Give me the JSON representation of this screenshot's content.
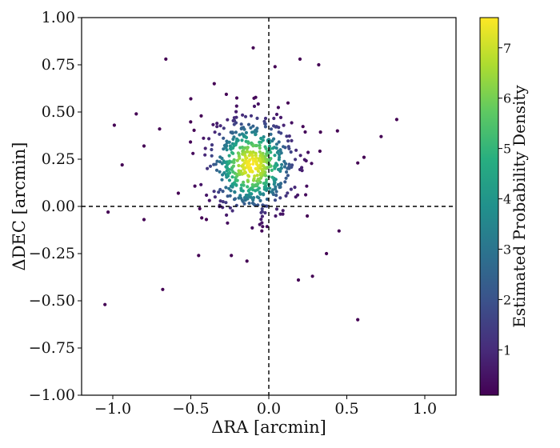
{
  "chart_data": {
    "type": "scatter",
    "xlabel": "ΔRA [arcmin]",
    "ylabel": "ΔDEC [arcmin]",
    "xlim": [
      -1.2,
      1.2
    ],
    "ylim": [
      -1.0,
      1.0
    ],
    "xticks": [
      -1.0,
      -0.5,
      0.0,
      0.5,
      1.0
    ],
    "xtick_labels": [
      "−1.0",
      "−0.5",
      "0.0",
      "0.5",
      "1.0"
    ],
    "yticks": [
      1.0,
      0.75,
      0.5,
      0.25,
      0.0,
      -0.25,
      -0.5,
      -0.75,
      -1.0
    ],
    "ytick_labels": [
      "1.00",
      "0.75",
      "0.50",
      "0.25",
      "0.00",
      "−0.25",
      "−0.50",
      "−0.75",
      "−1.00"
    ],
    "reference_lines": {
      "x": 0.0,
      "y": 0.0,
      "style": "dashed"
    },
    "grid": false,
    "colormap": "viridis",
    "colorbar": {
      "label": "Estimated Probability Density",
      "range": [
        0.1,
        7.6
      ],
      "ticks": [
        1,
        2,
        3,
        4,
        5,
        6,
        7
      ],
      "tick_labels": [
        "1",
        "2",
        "3",
        "4",
        "5",
        "6",
        "7"
      ]
    },
    "outliers": [
      {
        "x": -1.05,
        "y": -0.52
      },
      {
        "x": -0.68,
        "y": -0.44
      },
      {
        "x": -0.66,
        "y": 0.78
      },
      {
        "x": -0.1,
        "y": 0.84
      },
      {
        "x": 0.04,
        "y": 0.74
      },
      {
        "x": 0.2,
        "y": 0.78
      },
      {
        "x": 0.32,
        "y": 0.75
      },
      {
        "x": 0.82,
        "y": 0.46
      },
      {
        "x": 0.72,
        "y": 0.37
      },
      {
        "x": -0.99,
        "y": 0.43
      },
      {
        "x": -0.94,
        "y": 0.22
      },
      {
        "x": -1.03,
        "y": -0.03
      },
      {
        "x": 0.57,
        "y": -0.6
      },
      {
        "x": 0.19,
        "y": -0.39
      },
      {
        "x": 0.28,
        "y": -0.37
      },
      {
        "x": 0.37,
        "y": -0.25
      },
      {
        "x": 0.45,
        "y": -0.13
      },
      {
        "x": -0.45,
        "y": -0.26
      },
      {
        "x": -0.24,
        "y": -0.26
      },
      {
        "x": -0.14,
        "y": -0.29
      },
      {
        "x": -0.85,
        "y": 0.49
      },
      {
        "x": -0.8,
        "y": 0.32
      },
      {
        "x": -0.8,
        "y": -0.07
      },
      {
        "x": -0.58,
        "y": 0.07
      },
      {
        "x": 0.57,
        "y": 0.23
      },
      {
        "x": 0.61,
        "y": 0.26
      },
      {
        "x": 0.44,
        "y": 0.4
      },
      {
        "x": -0.35,
        "y": 0.65
      },
      {
        "x": -0.5,
        "y": 0.57
      },
      {
        "x": -0.7,
        "y": 0.41
      }
    ],
    "cluster": {
      "center": [
        -0.11,
        0.22
      ],
      "spread": [
        0.15,
        0.135
      ],
      "point_count": 560,
      "peak_density": 7.6
    }
  }
}
